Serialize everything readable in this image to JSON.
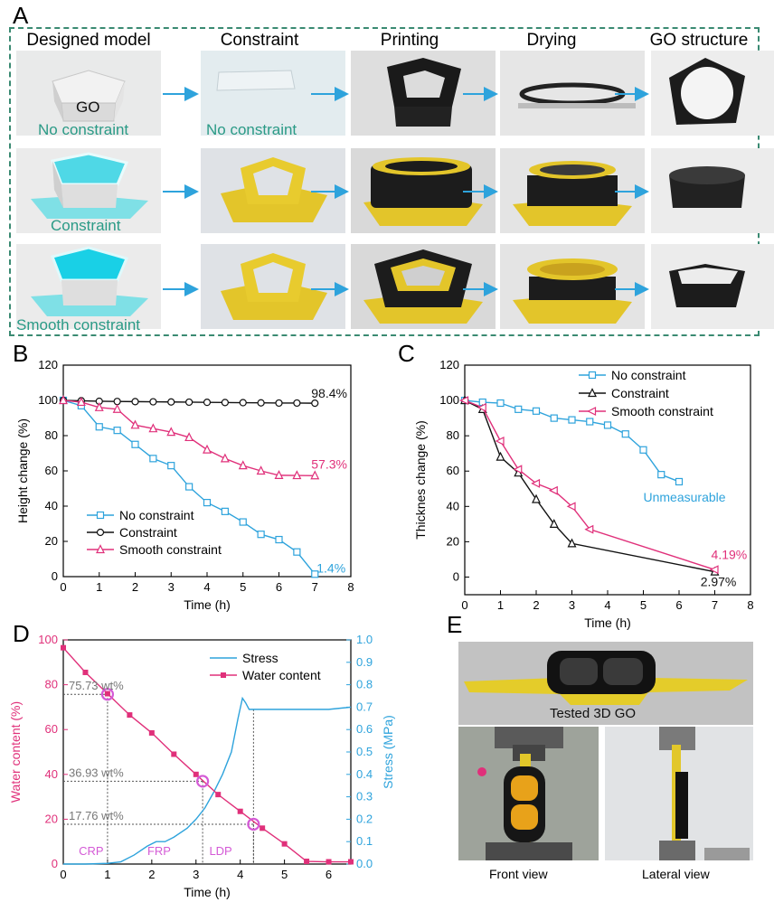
{
  "panelA": {
    "letter": "A",
    "columns": [
      "Designed model",
      "Constraint",
      "Printing",
      "Drying",
      "GO structure"
    ],
    "rows": [
      {
        "model_label": "No constraint",
        "model_inner_label": "GO",
        "constraint_label": "No constraint"
      },
      {
        "model_label": "Constraint"
      },
      {
        "model_label": "Smooth constraint"
      }
    ]
  },
  "panelB": {
    "letter": "B",
    "ylabel": "Height change (%)",
    "xlabel": "Time (h)",
    "annotations": [
      "98.4%",
      "57.3%",
      "1.4%"
    ],
    "legend": [
      "No constraint",
      "Constraint",
      "Smooth constraint"
    ]
  },
  "panelC": {
    "letter": "C",
    "ylabel": "Thicknes change (%)",
    "xlabel": "Time (h)",
    "annotations": [
      "Unmeasurable",
      "4.19%",
      "2.97%"
    ],
    "legend": [
      "No constraint",
      "Constraint",
      "Smooth constraint"
    ]
  },
  "panelD": {
    "letter": "D",
    "ylabel_left": "Water content (%)",
    "ylabel_right": "Stress (MPa)",
    "xlabel": "Time (h)",
    "legend": [
      "Stress",
      "Water content"
    ],
    "annotations": [
      "75.73 wt%",
      "36.93 wt%",
      "17.76 wt%"
    ],
    "regions": [
      "CRP",
      "FRP",
      "LDP"
    ]
  },
  "panelE": {
    "letter": "E",
    "top_caption": "Tested 3D GO",
    "front_caption": "Front view",
    "lateral_caption": "Lateral view"
  },
  "colors": {
    "blue": "#2ea3dc",
    "black": "#111111",
    "pink": "#e0307a",
    "green": "#2a9a86",
    "grey": "#777777"
  },
  "chart_data": [
    {
      "type": "line",
      "id": "B",
      "title": "",
      "xlabel": "Time (h)",
      "ylabel": "Height change (%)",
      "xlim": [
        0,
        8
      ],
      "ylim": [
        0,
        120
      ],
      "xticks": [
        0,
        1,
        2,
        3,
        4,
        5,
        6,
        7,
        8
      ],
      "yticks": [
        0,
        20,
        40,
        60,
        80,
        100,
        120
      ],
      "series": [
        {
          "name": "No constraint",
          "color": "#2ea3dc",
          "marker": "square",
          "x": [
            0,
            0.5,
            1,
            1.5,
            2,
            2.5,
            3,
            3.5,
            4,
            4.5,
            5,
            5.5,
            6,
            6.5,
            7
          ],
          "y": [
            100,
            97,
            85,
            83,
            75,
            67,
            63,
            51,
            42,
            37,
            31,
            24,
            21,
            14,
            1.4
          ]
        },
        {
          "name": "Constraint",
          "color": "#111111",
          "marker": "circle",
          "x": [
            0,
            0.5,
            1,
            1.5,
            2,
            2.5,
            3,
            3.5,
            4,
            4.5,
            5,
            5.5,
            6,
            6.5,
            7
          ],
          "y": [
            100,
            99.8,
            99.5,
            99.4,
            99.3,
            99.2,
            99.1,
            99,
            98.9,
            98.8,
            98.7,
            98.6,
            98.5,
            98.5,
            98.4
          ]
        },
        {
          "name": "Smooth constraint",
          "color": "#e0307a",
          "marker": "triangle",
          "x": [
            0,
            0.5,
            1,
            1.5,
            2,
            2.5,
            3,
            3.5,
            4,
            4.5,
            5,
            5.5,
            6,
            6.5,
            7
          ],
          "y": [
            100,
            99,
            96,
            95,
            86,
            84,
            82,
            79,
            72,
            67,
            63,
            60,
            57.5,
            57.4,
            57.3
          ]
        }
      ]
    },
    {
      "type": "line",
      "id": "C",
      "title": "",
      "xlabel": "Time (h)",
      "ylabel": "Thicknes change (%)",
      "xlim": [
        0,
        8
      ],
      "ylim": [
        -10,
        120
      ],
      "xticks": [
        0,
        1,
        2,
        3,
        4,
        5,
        6,
        7,
        8
      ],
      "yticks": [
        0,
        20,
        40,
        60,
        80,
        100,
        120
      ],
      "series": [
        {
          "name": "No constraint",
          "color": "#2ea3dc",
          "marker": "square",
          "x": [
            0,
            0.5,
            1,
            1.5,
            2,
            2.5,
            3,
            3.5,
            4,
            4.5,
            5,
            5.5,
            6
          ],
          "y": [
            100,
            99,
            98.5,
            95,
            94,
            90,
            89,
            88,
            86,
            81,
            72,
            58,
            54
          ]
        },
        {
          "name": "Constraint",
          "color": "#111111",
          "marker": "triangle-up",
          "x": [
            0,
            0.5,
            1,
            1.5,
            2,
            2.5,
            3,
            7
          ],
          "y": [
            100,
            95,
            68,
            59,
            44,
            30,
            19,
            2.97
          ]
        },
        {
          "name": "Smooth constraint",
          "color": "#e0307a",
          "marker": "triangle-left",
          "x": [
            0,
            0.5,
            1,
            1.5,
            2,
            2.5,
            3,
            3.5,
            7
          ],
          "y": [
            100,
            96,
            77,
            61,
            53,
            49,
            40,
            27,
            4.19
          ]
        }
      ]
    },
    {
      "type": "line",
      "id": "D",
      "title": "",
      "xlabel": "Time (h)",
      "ylabel": "Water content (%)",
      "ylabel_right": "Stress (MPa)",
      "xlim": [
        0,
        6.5
      ],
      "ylim": [
        0,
        100
      ],
      "ylim_right": [
        0,
        1.0
      ],
      "xticks": [
        0,
        1,
        2,
        3,
        4,
        5,
        6
      ],
      "yticks": [
        0,
        20,
        40,
        60,
        80,
        100
      ],
      "yticks_right": [
        0.0,
        0.1,
        0.2,
        0.3,
        0.4,
        0.5,
        0.6,
        0.7,
        0.8,
        0.9,
        1.0
      ],
      "series": [
        {
          "name": "Water content",
          "color": "#e0307a",
          "marker": "square",
          "axis": "left",
          "x": [
            0,
            0.5,
            1,
            1.5,
            2,
            2.5,
            3,
            3.5,
            4,
            4.5,
            5,
            5.5,
            6,
            6.5
          ],
          "y": [
            96.5,
            85.5,
            76,
            66.5,
            58.5,
            49,
            40,
            31,
            23.5,
            16,
            9,
            1.2,
            1,
            1
          ]
        },
        {
          "name": "Stress",
          "color": "#2ea3dc",
          "marker": "none",
          "axis": "right",
          "x": [
            0,
            0.5,
            1,
            1.3,
            1.6,
            1.9,
            2.1,
            2.3,
            2.5,
            2.8,
            3.0,
            3.2,
            3.4,
            3.6,
            3.8,
            3.95,
            4.05,
            4.12,
            4.2,
            4.3,
            4.5,
            5,
            5.5,
            6,
            6.5
          ],
          "y": [
            0,
            0,
            0.003,
            0.01,
            0.04,
            0.08,
            0.1,
            0.1,
            0.12,
            0.16,
            0.2,
            0.25,
            0.32,
            0.4,
            0.5,
            0.65,
            0.74,
            0.72,
            0.69,
            0.69,
            0.69,
            0.69,
            0.69,
            0.69,
            0.7
          ]
        }
      ],
      "markers": [
        {
          "x": 1.0,
          "y": 75.73,
          "label": "75.73 wt%"
        },
        {
          "x": 3.15,
          "y": 36.93,
          "label": "36.93 wt%"
        },
        {
          "x": 4.3,
          "y": 17.76,
          "label": "17.76 wt%"
        }
      ],
      "regions": [
        "CRP",
        "FRP",
        "LDP"
      ]
    }
  ]
}
